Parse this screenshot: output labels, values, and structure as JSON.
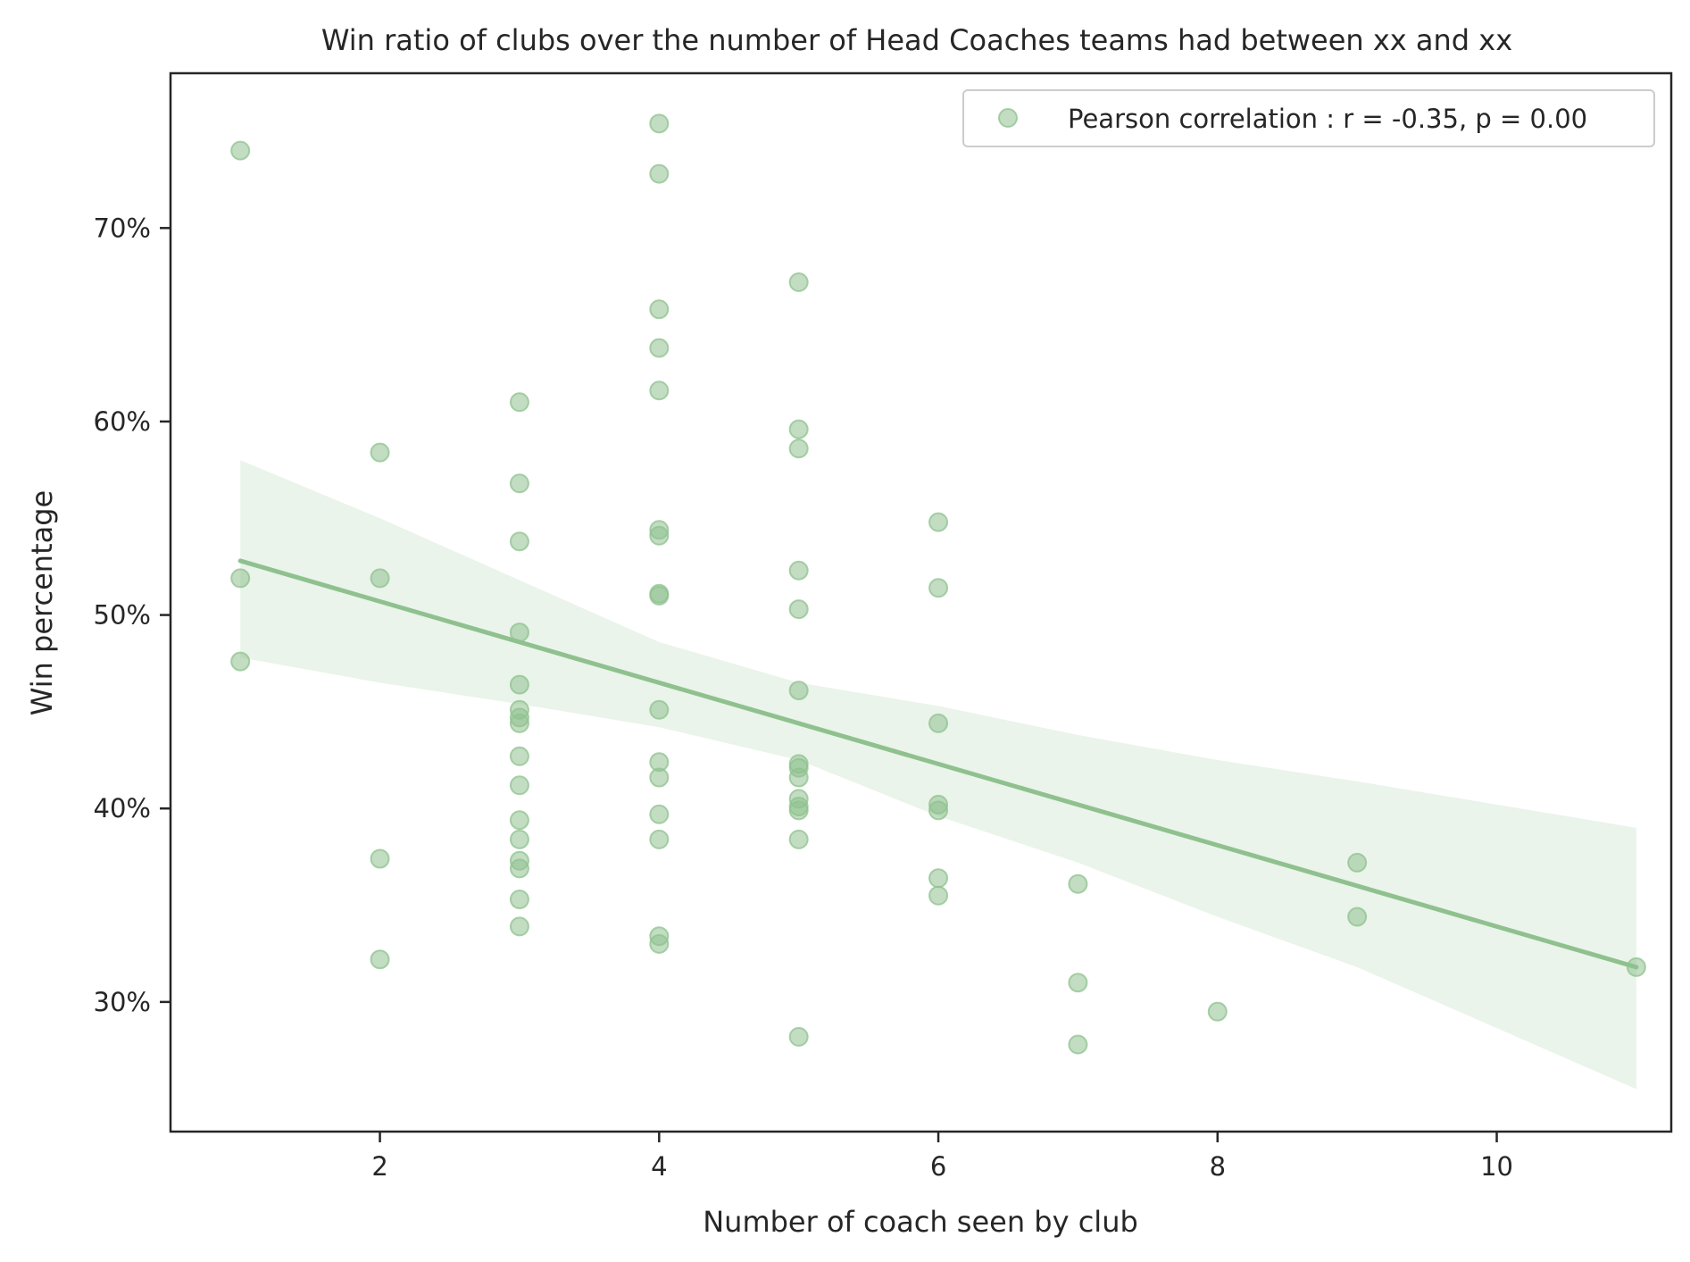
{
  "chart_data": {
    "type": "scatter",
    "title": "Win ratio of clubs over the number of Head Coaches teams had between xx and xx",
    "xlabel": "Number of coach seen by club",
    "ylabel": "Win percentage",
    "xlim": [
      0.5,
      11.25
    ],
    "ylim": [
      23.3,
      78.0
    ],
    "x_ticks": [
      2,
      4,
      6,
      8,
      10
    ],
    "x_tick_labels": [
      "2",
      "4",
      "6",
      "8",
      "10"
    ],
    "y_ticks": [
      30,
      40,
      50,
      60,
      70
    ],
    "y_tick_labels": [
      "30%",
      "40%",
      "50%",
      "60%",
      "70%"
    ],
    "grid": false,
    "legend": {
      "position": "top-right",
      "entries": [
        "Pearson correlation : r = -0.35, p = 0.00"
      ]
    },
    "series": [
      {
        "name": "Pearson correlation : r = -0.35, p = 0.00",
        "color": "#8fc18f",
        "points": [
          [
            1,
            74.0
          ],
          [
            1,
            51.9
          ],
          [
            1,
            47.6
          ],
          [
            2,
            58.4
          ],
          [
            2,
            51.9
          ],
          [
            2,
            37.4
          ],
          [
            2,
            32.2
          ],
          [
            3,
            61.0
          ],
          [
            3,
            56.8
          ],
          [
            3,
            53.8
          ],
          [
            3,
            49.1
          ],
          [
            3,
            46.4
          ],
          [
            3,
            45.1
          ],
          [
            3,
            44.7
          ],
          [
            3,
            44.4
          ],
          [
            3,
            42.7
          ],
          [
            3,
            41.2
          ],
          [
            3,
            39.4
          ],
          [
            3,
            38.4
          ],
          [
            3,
            37.3
          ],
          [
            3,
            36.9
          ],
          [
            3,
            35.3
          ],
          [
            3,
            33.9
          ],
          [
            4,
            75.4
          ],
          [
            4,
            72.8
          ],
          [
            4,
            65.8
          ],
          [
            4,
            63.8
          ],
          [
            4,
            61.6
          ],
          [
            4,
            54.4
          ],
          [
            4,
            54.1
          ],
          [
            4,
            51.1
          ],
          [
            4,
            51.0
          ],
          [
            4,
            45.1
          ],
          [
            4,
            42.4
          ],
          [
            4,
            41.6
          ],
          [
            4,
            39.7
          ],
          [
            4,
            38.4
          ],
          [
            4,
            33.4
          ],
          [
            4,
            33.0
          ],
          [
            5,
            67.2
          ],
          [
            5,
            59.6
          ],
          [
            5,
            58.6
          ],
          [
            5,
            52.3
          ],
          [
            5,
            50.3
          ],
          [
            5,
            46.1
          ],
          [
            5,
            42.3
          ],
          [
            5,
            42.1
          ],
          [
            5,
            41.6
          ],
          [
            5,
            40.5
          ],
          [
            5,
            40.1
          ],
          [
            5,
            39.9
          ],
          [
            5,
            38.4
          ],
          [
            5,
            28.2
          ],
          [
            6,
            54.8
          ],
          [
            6,
            51.4
          ],
          [
            6,
            44.4
          ],
          [
            6,
            40.2
          ],
          [
            6,
            39.9
          ],
          [
            6,
            36.4
          ],
          [
            6,
            35.5
          ],
          [
            7,
            36.1
          ],
          [
            7,
            31.0
          ],
          [
            7,
            27.8
          ],
          [
            8,
            29.5
          ],
          [
            9,
            37.2
          ],
          [
            9,
            34.4
          ],
          [
            11,
            31.8
          ]
        ]
      }
    ],
    "regression": {
      "color": "#8fc18f",
      "x_range": [
        1,
        11
      ],
      "line": [
        [
          1,
          52.8
        ],
        [
          11,
          31.8
        ]
      ],
      "confidence_band": {
        "color": "#eaf4ea",
        "x": [
          1,
          2,
          3,
          4,
          5,
          6,
          7,
          8,
          9,
          11
        ],
        "upper": [
          58.0,
          55.0,
          51.8,
          48.6,
          46.5,
          45.3,
          43.8,
          42.5,
          41.4,
          39.0
        ],
        "lower": [
          47.8,
          46.5,
          45.4,
          44.2,
          42.5,
          39.6,
          37.2,
          34.4,
          31.8,
          25.5
        ]
      }
    }
  }
}
